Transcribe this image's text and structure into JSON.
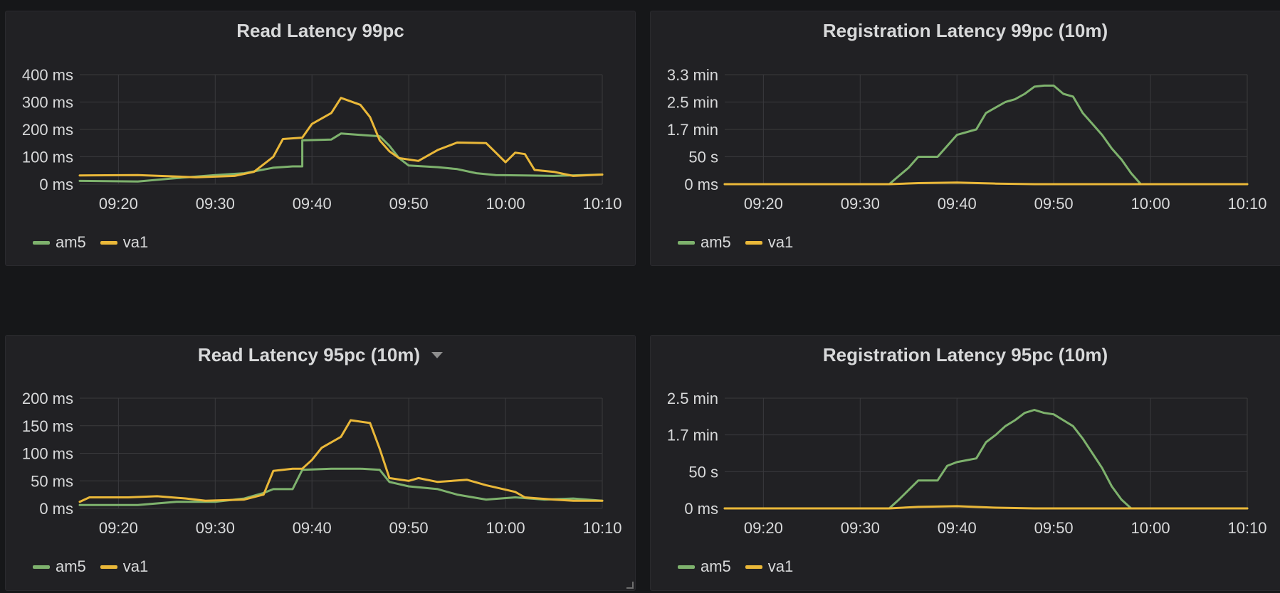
{
  "x_ticks": [
    "09:20",
    "09:30",
    "09:40",
    "09:50",
    "10:00",
    "10:10"
  ],
  "legend": [
    {
      "name": "am5",
      "color": "#7eb26d"
    },
    {
      "name": "va1",
      "color": "#eab839"
    }
  ],
  "chart_data": [
    {
      "type": "line",
      "title": "Read Latency 99pc",
      "y_ticks": [
        "400 ms",
        "300 ms",
        "200 ms",
        "100 ms",
        "0 ms"
      ],
      "ylim": [
        0,
        400
      ],
      "xlim": [
        "09:16",
        "10:10"
      ],
      "grid": true,
      "legend_position": "bottom-left",
      "series": [
        {
          "name": "am5",
          "color": "#7eb26d",
          "points": [
            [
              "09:16",
              12
            ],
            [
              "09:22",
              10
            ],
            [
              "09:26",
              22
            ],
            [
              "09:30",
              33
            ],
            [
              "09:33",
              40
            ],
            [
              "09:36",
              60
            ],
            [
              "09:38",
              65
            ],
            [
              "09:39",
              65
            ],
            [
              "09:39",
              160
            ],
            [
              "09:42",
              163
            ],
            [
              "09:43",
              185
            ],
            [
              "09:45",
              180
            ],
            [
              "09:47",
              175
            ],
            [
              "09:48",
              140
            ],
            [
              "09:49",
              95
            ],
            [
              "09:50",
              68
            ],
            [
              "09:53",
              62
            ],
            [
              "09:55",
              55
            ],
            [
              "09:57",
              40
            ],
            [
              "09:59",
              33
            ],
            [
              "10:02",
              32
            ],
            [
              "10:05",
              30
            ],
            [
              "10:08",
              33
            ],
            [
              "10:10",
              35
            ]
          ]
        },
        {
          "name": "va1",
          "color": "#eab839",
          "points": [
            [
              "09:16",
              32
            ],
            [
              "09:22",
              33
            ],
            [
              "09:26",
              28
            ],
            [
              "09:28",
              25
            ],
            [
              "09:32",
              30
            ],
            [
              "09:34",
              45
            ],
            [
              "09:36",
              100
            ],
            [
              "09:37",
              165
            ],
            [
              "09:39",
              170
            ],
            [
              "09:40",
              220
            ],
            [
              "09:42",
              260
            ],
            [
              "09:43",
              315
            ],
            [
              "09:45",
              290
            ],
            [
              "09:46",
              245
            ],
            [
              "09:47",
              160
            ],
            [
              "09:48",
              120
            ],
            [
              "09:49",
              95
            ],
            [
              "09:51",
              85
            ],
            [
              "09:53",
              125
            ],
            [
              "09:55",
              152
            ],
            [
              "09:58",
              150
            ],
            [
              "09:59",
              115
            ],
            [
              "10:00",
              80
            ],
            [
              "10:01",
              115
            ],
            [
              "10:02",
              110
            ],
            [
              "10:03",
              52
            ],
            [
              "10:05",
              45
            ],
            [
              "10:07",
              30
            ],
            [
              "10:10",
              35
            ]
          ]
        }
      ]
    },
    {
      "type": "line",
      "title": "Registration Latency 99pc (10m)",
      "y_ticks": [
        "3.3 min",
        "2.5 min",
        "1.7 min",
        "50 s",
        "0 ms"
      ],
      "ylim": [
        0,
        200
      ],
      "xlim": [
        "09:16",
        "10:10"
      ],
      "grid": true,
      "legend_position": "bottom-left",
      "series": [
        {
          "name": "am5",
          "color": "#7eb26d",
          "points": [
            [
              "09:16",
              0
            ],
            [
              "09:33",
              0
            ],
            [
              "09:34",
              15
            ],
            [
              "09:35",
              30
            ],
            [
              "09:36",
              50
            ],
            [
              "09:38",
              50
            ],
            [
              "09:39",
              70
            ],
            [
              "09:40",
              90
            ],
            [
              "09:42",
              100
            ],
            [
              "09:43",
              130
            ],
            [
              "09:44",
              140
            ],
            [
              "09:45",
              150
            ],
            [
              "09:46",
              155
            ],
            [
              "09:47",
              165
            ],
            [
              "09:48",
              178
            ],
            [
              "09:49",
              180
            ],
            [
              "09:50",
              180
            ],
            [
              "09:51",
              165
            ],
            [
              "09:52",
              160
            ],
            [
              "09:53",
              130
            ],
            [
              "09:54",
              110
            ],
            [
              "09:55",
              90
            ],
            [
              "09:56",
              65
            ],
            [
              "09:57",
              45
            ],
            [
              "09:58",
              20
            ],
            [
              "09:59",
              0
            ],
            [
              "10:10",
              0
            ]
          ]
        },
        {
          "name": "va1",
          "color": "#eab839",
          "points": [
            [
              "09:16",
              0
            ],
            [
              "09:33",
              0
            ],
            [
              "09:36",
              2
            ],
            [
              "09:40",
              3
            ],
            [
              "09:44",
              1
            ],
            [
              "09:48",
              0
            ],
            [
              "10:10",
              0
            ]
          ]
        }
      ]
    },
    {
      "type": "line",
      "title": "Read Latency 95pc (10m)",
      "y_ticks": [
        "200 ms",
        "150 ms",
        "100 ms",
        "50 ms",
        "0 ms"
      ],
      "ylim": [
        0,
        200
      ],
      "xlim": [
        "09:16",
        "10:10"
      ],
      "grid": true,
      "legend_position": "bottom-left",
      "series": [
        {
          "name": "am5",
          "color": "#7eb26d",
          "points": [
            [
              "09:16",
              6
            ],
            [
              "09:22",
              6
            ],
            [
              "09:26",
              12
            ],
            [
              "09:30",
              12
            ],
            [
              "09:33",
              18
            ],
            [
              "09:35",
              28
            ],
            [
              "09:36",
              35
            ],
            [
              "09:38",
              35
            ],
            [
              "09:39",
              70
            ],
            [
              "09:42",
              72
            ],
            [
              "09:45",
              72
            ],
            [
              "09:47",
              70
            ],
            [
              "09:48",
              48
            ],
            [
              "09:50",
              40
            ],
            [
              "09:53",
              35
            ],
            [
              "09:55",
              25
            ],
            [
              "09:58",
              16
            ],
            [
              "10:01",
              20
            ],
            [
              "10:04",
              16
            ],
            [
              "10:07",
              18
            ],
            [
              "10:10",
              14
            ]
          ]
        },
        {
          "name": "va1",
          "color": "#eab839",
          "points": [
            [
              "09:16",
              12
            ],
            [
              "09:17",
              20
            ],
            [
              "09:21",
              20
            ],
            [
              "09:24",
              22
            ],
            [
              "09:27",
              18
            ],
            [
              "09:29",
              14
            ],
            [
              "09:33",
              16
            ],
            [
              "09:35",
              25
            ],
            [
              "09:36",
              68
            ],
            [
              "09:38",
              72
            ],
            [
              "09:39",
              72
            ],
            [
              "09:40",
              88
            ],
            [
              "09:41",
              110
            ],
            [
              "09:43",
              130
            ],
            [
              "09:44",
              160
            ],
            [
              "09:46",
              155
            ],
            [
              "09:47",
              108
            ],
            [
              "09:48",
              55
            ],
            [
              "09:50",
              50
            ],
            [
              "09:51",
              55
            ],
            [
              "09:53",
              48
            ],
            [
              "09:56",
              52
            ],
            [
              "09:58",
              42
            ],
            [
              "10:01",
              30
            ],
            [
              "10:02",
              20
            ],
            [
              "10:05",
              16
            ],
            [
              "10:07",
              14
            ],
            [
              "10:10",
              14
            ]
          ]
        }
      ]
    },
    {
      "type": "line",
      "title": "Registration Latency 95pc (10m)",
      "y_ticks": [
        "2.5 min",
        "1.7 min",
        "50 s",
        "0 ms"
      ],
      "ylim": [
        0,
        150
      ],
      "xlim": [
        "09:16",
        "10:10"
      ],
      "grid": true,
      "legend_position": "bottom-left",
      "series": [
        {
          "name": "am5",
          "color": "#7eb26d",
          "points": [
            [
              "09:16",
              0
            ],
            [
              "09:33",
              0
            ],
            [
              "09:34",
              12
            ],
            [
              "09:35",
              25
            ],
            [
              "09:36",
              38
            ],
            [
              "09:38",
              38
            ],
            [
              "09:39",
              58
            ],
            [
              "09:40",
              63
            ],
            [
              "09:42",
              68
            ],
            [
              "09:43",
              90
            ],
            [
              "09:44",
              100
            ],
            [
              "09:45",
              112
            ],
            [
              "09:46",
              120
            ],
            [
              "09:47",
              130
            ],
            [
              "09:48",
              134
            ],
            [
              "09:49",
              130
            ],
            [
              "09:50",
              128
            ],
            [
              "09:51",
              120
            ],
            [
              "09:52",
              112
            ],
            [
              "09:53",
              95
            ],
            [
              "09:54",
              75
            ],
            [
              "09:55",
              55
            ],
            [
              "09:56",
              30
            ],
            [
              "09:57",
              12
            ],
            [
              "09:58",
              0
            ],
            [
              "10:10",
              0
            ]
          ]
        },
        {
          "name": "va1",
          "color": "#eab839",
          "points": [
            [
              "09:16",
              0
            ],
            [
              "09:33",
              0
            ],
            [
              "09:36",
              2
            ],
            [
              "09:40",
              3
            ],
            [
              "09:44",
              1
            ],
            [
              "09:48",
              0
            ],
            [
              "10:10",
              0
            ]
          ]
        }
      ]
    }
  ]
}
